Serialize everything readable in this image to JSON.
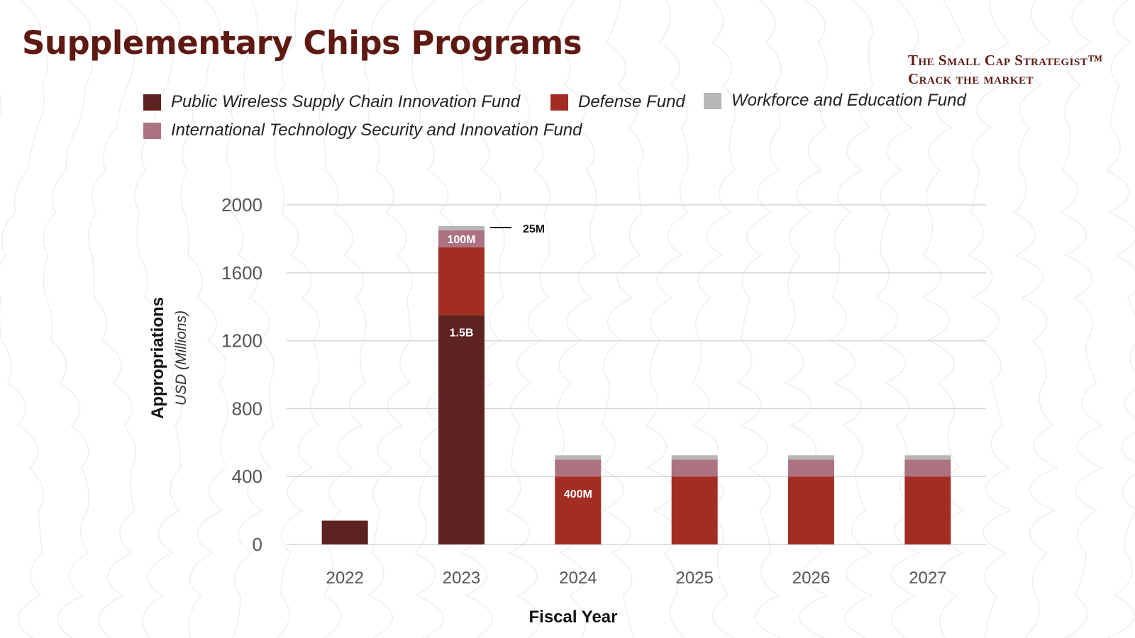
{
  "title": "Supplementary Chips Programs",
  "brand": {
    "line1": "The Small Cap Strategist™",
    "line2": "Crack the market"
  },
  "chart_data": {
    "type": "bar",
    "stacked": true,
    "categories": [
      "2022",
      "2023",
      "2024",
      "2025",
      "2026",
      "2027"
    ],
    "series": [
      {
        "name": "Public Wireless Supply Chain Innovation Fund",
        "color": "#5c2320",
        "values": [
          140,
          1350,
          0,
          0,
          0,
          0
        ]
      },
      {
        "name": "Defense Fund",
        "color": "#a22d22",
        "values": [
          0,
          400,
          400,
          400,
          400,
          400
        ]
      },
      {
        "name": "International Technology Security and Innovation Fund",
        "color": "#ad7282",
        "values": [
          0,
          100,
          100,
          100,
          100,
          100
        ]
      },
      {
        "name": "Workforce and Education Fund",
        "color": "#b8b6b5",
        "values": [
          0,
          25,
          25,
          25,
          25,
          25
        ]
      }
    ],
    "data_labels": [
      {
        "category": "2023",
        "series": 0,
        "text": "1.5B"
      },
      {
        "category": "2023",
        "series": 2,
        "text": "100M"
      },
      {
        "category": "2023",
        "series": 3,
        "text": "25M",
        "callout": true
      },
      {
        "category": "2024",
        "series": 1,
        "text": "400M"
      }
    ],
    "xlabel": "Fiscal Year",
    "ylabel": "Appropriations",
    "ylabel_sub": "USD (Millions)",
    "yticks": [
      "0",
      "400",
      "800",
      "1200",
      "1600",
      "2000"
    ],
    "ylim": [
      0,
      2000
    ],
    "grid": true,
    "legend_position": "top"
  }
}
